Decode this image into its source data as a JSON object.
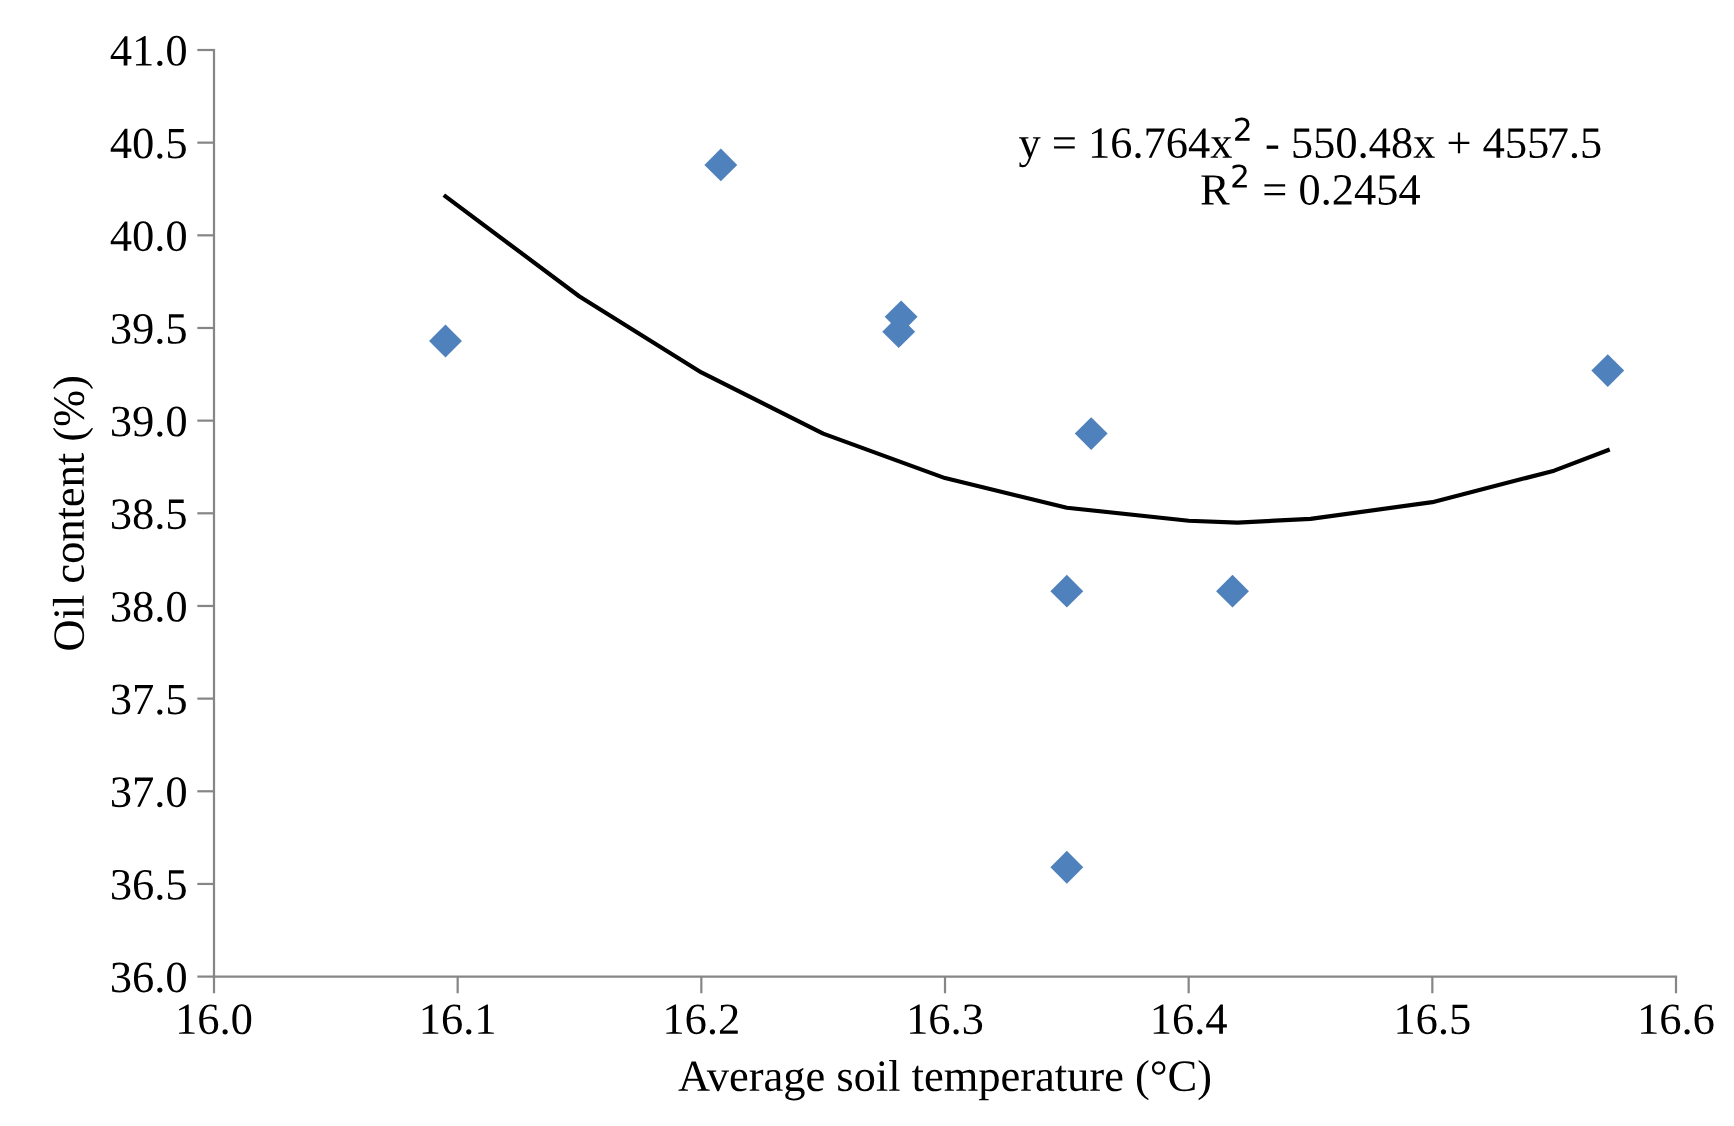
{
  "chart_data": {
    "type": "scatter",
    "xlabel": "Average soil temperature (°C)",
    "ylabel": "Oil content (%)",
    "xlim": [
      16.0,
      16.6
    ],
    "xticks": [
      {
        "value": 16.0,
        "label": "16.0"
      },
      16.1,
      16.2,
      16.3,
      16.4,
      16.5,
      16.6
    ],
    "ylim": [
      36.0,
      41.0
    ],
    "yticks": [
      {
        "value": 36.0,
        "label": "36.0"
      },
      36.5,
      {
        "value": 37.0,
        "label": "37.0"
      },
      37.5,
      {
        "value": 38.0,
        "label": "38.0"
      },
      38.5,
      {
        "value": 39.0,
        "label": "39.0"
      },
      39.5,
      {
        "value": 40.0,
        "label": "40.0"
      },
      40.5,
      {
        "value": 41.0,
        "label": "41.0"
      }
    ],
    "grid": false,
    "legend": false,
    "marker": "diamond",
    "annotations": [
      "y = 16.764x$^{2}$ - 550.48x + 4557.5",
      "R$^{2}$ = 0.2454"
    ],
    "series": [
      {
        "color": "#4f81bd",
        "x": [
          16.095,
          16.208,
          16.282,
          16.281,
          16.36,
          16.35,
          16.418,
          16.35,
          16.572
        ],
        "values": [
          39.43,
          40.38,
          39.56,
          39.48,
          38.93,
          38.08,
          38.08,
          36.59,
          39.27
        ]
      },
      {
        "type": "line",
        "color": "#000000",
        "marker": "none",
        "line_style": "solid",
        "x": [
          16.095,
          16.15,
          16.2,
          16.25,
          16.3,
          16.35,
          16.4,
          16.42,
          16.45,
          16.5,
          16.55,
          16.572
        ],
        "values": [
          40.21,
          39.67,
          39.26,
          38.93,
          38.69,
          38.53,
          38.46,
          38.45,
          38.47,
          38.56,
          38.73,
          38.84
        ]
      }
    ]
  }
}
